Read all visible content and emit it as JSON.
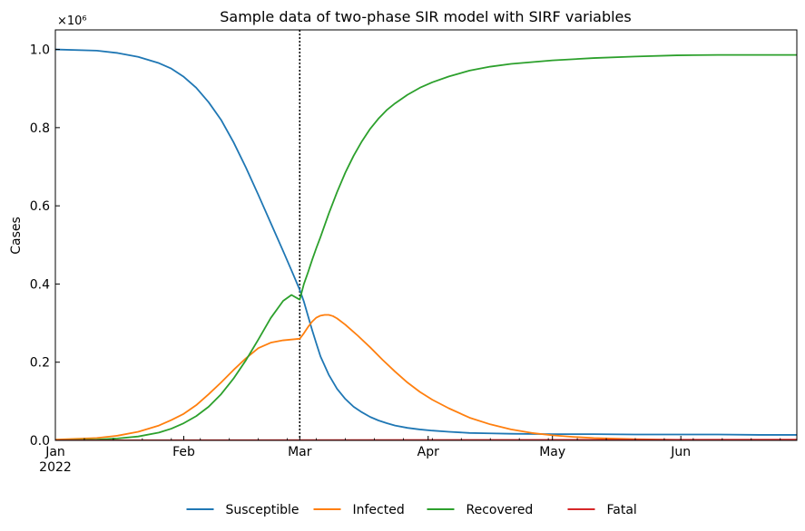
{
  "chart_data": {
    "type": "line",
    "title": "Sample data of two-phase SIR model with SIRF variables",
    "xlabel": "",
    "ylabel": "Cases",
    "y_multiplier_label": "×10⁶",
    "x_unit": "day of 2022",
    "xlim": [
      0,
      179
    ],
    "ylim": [
      0,
      1.05
    ],
    "x_ticks": [
      {
        "x": 0,
        "label": "Jan",
        "sublabel": "2022"
      },
      {
        "x": 31,
        "label": "Feb"
      },
      {
        "x": 59,
        "label": "Mar"
      },
      {
        "x": 90,
        "label": "Apr"
      },
      {
        "x": 120,
        "label": "May"
      },
      {
        "x": 151,
        "label": "Jun"
      }
    ],
    "y_ticks": [
      {
        "y": 0.0,
        "label": "0.0"
      },
      {
        "y": 0.2,
        "label": "0.2"
      },
      {
        "y": 0.4,
        "label": "0.4"
      },
      {
        "y": 0.6,
        "label": "0.6"
      },
      {
        "y": 0.8,
        "label": "0.8"
      },
      {
        "y": 1.0,
        "label": "1.0"
      }
    ],
    "vline": {
      "x": 59,
      "style": "dotted"
    },
    "legend_position": "bottom-center",
    "series": [
      {
        "name": "Susceptible",
        "color": "#1f77b4",
        "x": [
          0,
          10,
          15,
          20,
          25,
          28,
          31,
          34,
          37,
          40,
          43,
          46,
          49,
          52,
          55,
          57,
          59,
          60,
          61,
          62,
          63,
          64,
          66,
          68,
          70,
          72,
          74,
          76,
          78,
          80,
          82,
          85,
          88,
          91,
          95,
          100,
          105,
          110,
          120,
          130,
          140,
          150,
          160,
          170,
          179
        ],
        "values": [
          1.0,
          0.997,
          0.991,
          0.981,
          0.965,
          0.951,
          0.93,
          0.902,
          0.865,
          0.82,
          0.763,
          0.698,
          0.628,
          0.556,
          0.484,
          0.435,
          0.385,
          0.355,
          0.318,
          0.282,
          0.248,
          0.215,
          0.168,
          0.132,
          0.106,
          0.086,
          0.072,
          0.06,
          0.051,
          0.044,
          0.038,
          0.032,
          0.028,
          0.025,
          0.022,
          0.019,
          0.018,
          0.017,
          0.016,
          0.016,
          0.015,
          0.015,
          0.015,
          0.014,
          0.014
        ]
      },
      {
        "name": "Infected",
        "color": "#ff7f0e",
        "x": [
          0,
          10,
          15,
          20,
          25,
          28,
          31,
          34,
          37,
          40,
          43,
          46,
          49,
          52,
          55,
          57,
          59,
          60,
          61,
          62,
          63,
          64,
          65,
          66,
          67,
          68,
          70,
          73,
          76,
          79,
          82,
          85,
          88,
          91,
          95,
          100,
          105,
          110,
          115,
          120,
          125,
          130,
          140,
          150,
          160,
          170,
          179
        ],
        "values": [
          0.002,
          0.006,
          0.012,
          0.022,
          0.038,
          0.052,
          0.068,
          0.09,
          0.118,
          0.148,
          0.18,
          0.21,
          0.236,
          0.25,
          0.256,
          0.258,
          0.26,
          0.274,
          0.29,
          0.304,
          0.314,
          0.319,
          0.321,
          0.321,
          0.318,
          0.312,
          0.296,
          0.268,
          0.238,
          0.206,
          0.176,
          0.148,
          0.124,
          0.104,
          0.082,
          0.058,
          0.041,
          0.028,
          0.019,
          0.013,
          0.009,
          0.006,
          0.003,
          0.0015,
          0.0008,
          0.0004,
          0.0002
        ]
      },
      {
        "name": "Recovered",
        "color": "#2ca02c",
        "x": [
          0,
          10,
          15,
          20,
          25,
          28,
          31,
          34,
          37,
          40,
          43,
          46,
          49,
          52,
          55,
          57,
          59,
          60,
          61,
          62,
          63,
          64,
          66,
          68,
          70,
          72,
          74,
          76,
          78,
          80,
          82,
          85,
          88,
          91,
          95,
          100,
          105,
          110,
          120,
          130,
          140,
          150,
          160,
          170,
          179
        ],
        "values": [
          0.0,
          0.002,
          0.005,
          0.01,
          0.02,
          0.03,
          0.044,
          0.062,
          0.086,
          0.118,
          0.158,
          0.205,
          0.258,
          0.313,
          0.357,
          0.372,
          0.36,
          0.4,
          0.43,
          0.462,
          0.492,
          0.52,
          0.58,
          0.635,
          0.685,
          0.728,
          0.765,
          0.797,
          0.823,
          0.845,
          0.862,
          0.884,
          0.902,
          0.916,
          0.931,
          0.946,
          0.956,
          0.963,
          0.972,
          0.978,
          0.982,
          0.985,
          0.986,
          0.986,
          0.986
        ]
      },
      {
        "name": "Fatal",
        "color": "#d62728",
        "x": [
          0,
          179
        ],
        "values": [
          0.0,
          0.002
        ]
      }
    ]
  }
}
